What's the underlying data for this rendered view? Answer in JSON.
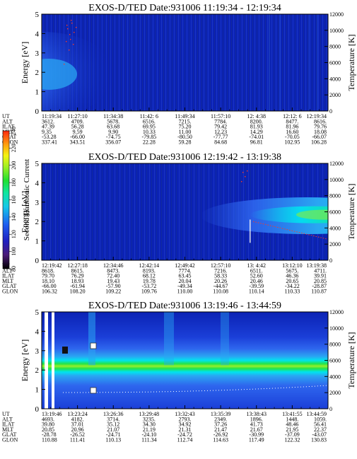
{
  "colors": {
    "bg": "#0b22b4",
    "mid": "#2e66ee",
    "light": "#2aa6f2",
    "cyan": "#00e3ef",
    "green": "#22e44a",
    "lime": "#96ee2a",
    "red": "#ff3a22",
    "white": "#ffffff"
  },
  "colorbar": {
    "label": "Second Harmonic Current",
    "ticks": [
      "80",
      "100",
      "120",
      "140",
      "160",
      "180",
      "200",
      "220",
      "240"
    ],
    "scale": [
      "#000000",
      "#4a1a78",
      "#2020c0",
      "#1e5ef0",
      "#14c8e8",
      "#10e6a0",
      "#20e030",
      "#a0f020",
      "#f4f410",
      "#ffa010",
      "#ff2810"
    ]
  },
  "ephemeris_labels": [
    "UT",
    "ALT",
    "ILAT",
    "MLT",
    "GLAT",
    "GLON"
  ],
  "chart_data": [
    {
      "type": "heatmap",
      "title": "EXOS-D/TED   Date:931006   11:19:34 - 12:19:34",
      "ylabel": "Energy [eV]",
      "y2label": "Temperature [K]",
      "ylim": [
        0,
        5
      ],
      "yticks": [
        "0",
        "1",
        "2",
        "3",
        "4",
        "5"
      ],
      "y2lim": [
        0,
        12000
      ],
      "y2ticks": [
        "0",
        "2000",
        "4000",
        "6000",
        "8000",
        "10000",
        "12000"
      ],
      "ephemeris": [
        [
          "11:19:34",
          "3612.",
          "47.39",
          "9.35",
          "-53.28",
          "337.41"
        ],
        [
          "11:27:10",
          "4709.",
          "56.28",
          "9.59",
          "-66.00",
          "343.51"
        ],
        [
          "11:34:38",
          "5678.",
          "63.68",
          "9.90",
          "-74.75",
          "356.07"
        ],
        [
          "11:42: 6",
          "6516.",
          "69.95",
          "10.33",
          "-79.85",
          "22.28"
        ],
        [
          "11:49:34",
          "7215.",
          "75.20",
          "11.00",
          "-80.50",
          "59.28"
        ],
        [
          "11:57:10",
          "7784.",
          "79.42",
          "12.23",
          "-77.77",
          "84.68"
        ],
        [
          "12: 4:38",
          "8200.",
          "81.93",
          "14.29",
          "-74.01",
          "96.81"
        ],
        [
          "12:12: 6",
          "8477.",
          "81.96",
          "16.60",
          "-70.05",
          "102.95"
        ],
        [
          "12:19:34",
          "8616.",
          "79.76",
          "18.08",
          "-66.07",
          "106.28"
        ]
      ]
    },
    {
      "type": "heatmap",
      "title": "EXOS-D/TED   Date:931006   12:19:42 - 13:19:38",
      "ylabel": "Energy [eV]",
      "y2label": "Temperature [K]",
      "ylim": [
        0,
        5
      ],
      "yticks": [
        "0",
        "1",
        "2",
        "3",
        "4",
        "5"
      ],
      "y2lim": [
        0,
        12000
      ],
      "y2ticks": [
        "0",
        "2000",
        "4000",
        "6000",
        "8000",
        "10000",
        "12000"
      ],
      "ephemeris": [
        [
          "12:19:42",
          "8618.",
          "79.70",
          "18.10",
          "-66.00",
          "106.32"
        ],
        [
          "12:27:18",
          "8615.",
          "76.29",
          "18.93",
          "-61.94",
          "108.20"
        ],
        [
          "12:34:46",
          "8473.",
          "72.40",
          "19.43",
          "-57.90",
          "109.22"
        ],
        [
          "12:42:14",
          "8193.",
          "68.12",
          "19.78",
          "-53.72",
          "109.76"
        ],
        [
          "12:49:42",
          "7774.",
          "63.45",
          "20.04",
          "-49.34",
          "110.00"
        ],
        [
          "12:57:10",
          "7216.",
          "58.33",
          "20.26",
          "-44.67",
          "110.08"
        ],
        [
          "13: 4:42",
          "6511.",
          "52.60",
          "20.46",
          "-39.59",
          "110.14"
        ],
        [
          "13:12:10",
          "5675.",
          "46.36",
          "20.65",
          "-34.22",
          "110.33"
        ],
        [
          "13:19:38",
          "4711.",
          "39.91",
          "20.85",
          "-28.87",
          "110.87"
        ]
      ]
    },
    {
      "type": "heatmap",
      "title": "EXOS-D/TED   Date:931006   13:19:46 - 13:44:59",
      "ylabel": "Energy [eV]",
      "y2label": "Temperature [K]",
      "ylim": [
        0,
        5
      ],
      "yticks": [
        "0",
        "1",
        "2",
        "3",
        "4",
        "5"
      ],
      "y2lim": [
        0,
        12000
      ],
      "y2ticks": [
        "0",
        "2000",
        "4000",
        "6000",
        "8000",
        "10000",
        "12000"
      ],
      "ephemeris": [
        [
          "13:19:46",
          "4693.",
          "39.80",
          "20.85",
          "-28.78",
          "110.88"
        ],
        [
          "13:23:24",
          "4182.",
          "37.01",
          "20.96",
          "-26.52",
          "111.41"
        ],
        [
          "13:26:36",
          "3714.",
          "35.12",
          "21.07",
          "-24.71",
          "110.13"
        ],
        [
          "13:29:48",
          "3235.",
          "34.30",
          "21.19",
          "-24.10",
          "111.34"
        ],
        [
          "13:32:43",
          "2793.",
          "34.92",
          "21.31",
          "-24.72",
          "112.74"
        ],
        [
          "13:35:39",
          "2349.",
          "37.26",
          "21.47",
          "-26.92",
          "114.63"
        ],
        [
          "13:38:43",
          "1896.",
          "41.73",
          "21.67",
          "-30.99",
          "117.49"
        ],
        [
          "13:41:55",
          "1448.",
          "48.46",
          "21.95",
          "-37.09",
          "122.32"
        ],
        [
          "13:44:59",
          "1059.",
          "56.41",
          "22.37",
          "-43.07",
          "130.83"
        ]
      ]
    }
  ]
}
